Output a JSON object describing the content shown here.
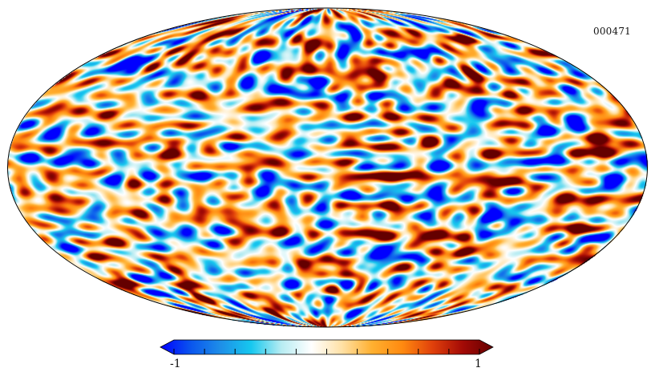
{
  "map": {
    "projection": "mollweide",
    "identifier": "000471"
  },
  "colorbar": {
    "min_label": "-1",
    "max_label": "1",
    "min": -1,
    "max": 1,
    "tick_count": 11,
    "colors": [
      "#0000ff",
      "#0a55ee",
      "#1e8fe8",
      "#16c8ef",
      "#b7ecf2",
      "#ffffff",
      "#ffe1a6",
      "#ffb030",
      "#ff8a10",
      "#e0400b",
      "#a30a06",
      "#640000"
    ]
  }
}
